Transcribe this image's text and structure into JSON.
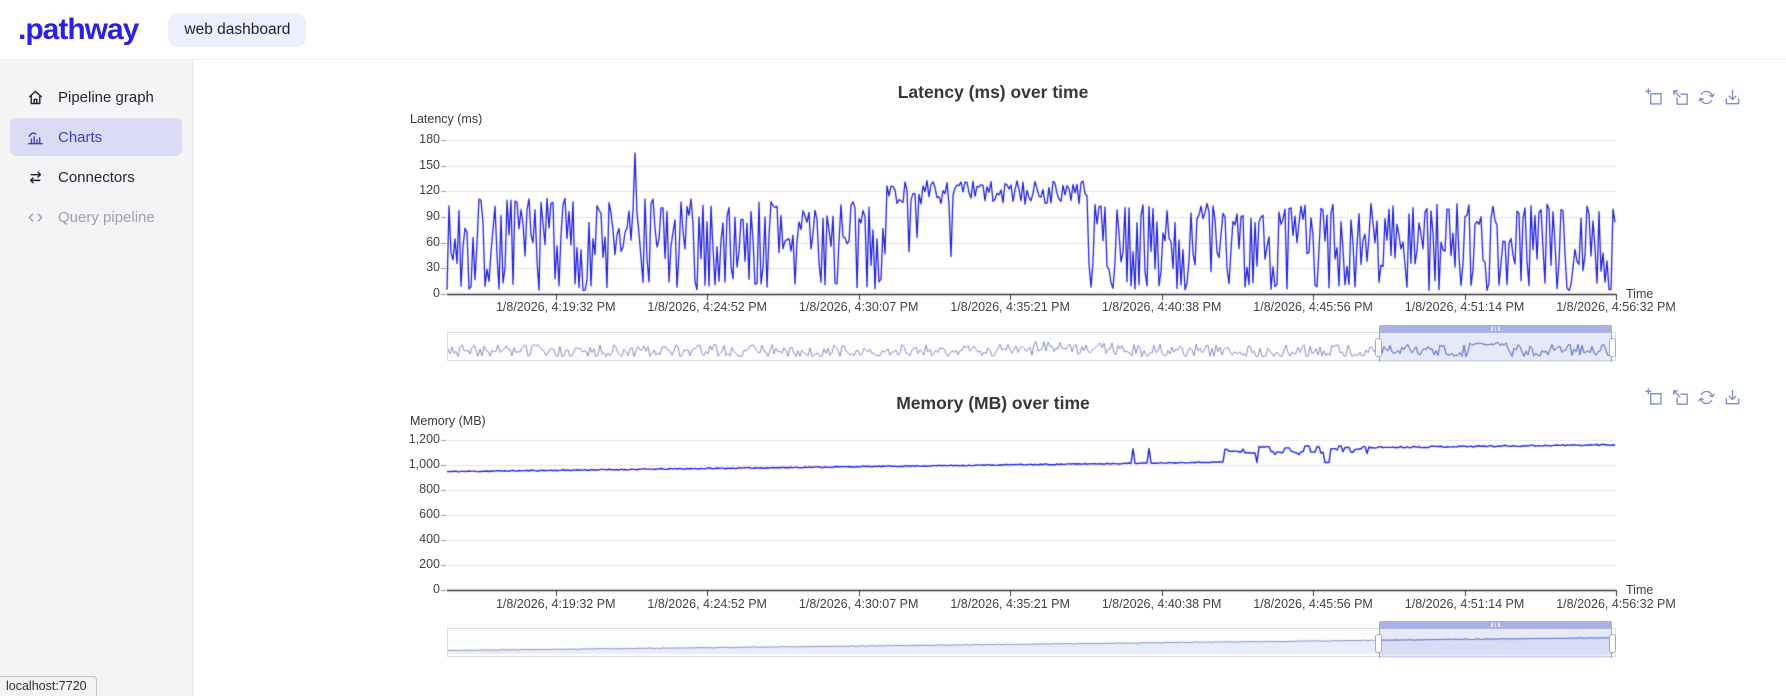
{
  "header": {
    "logo_text": ".pathway",
    "badge": "web dashboard"
  },
  "sidebar": {
    "items": [
      {
        "label": "Pipeline graph",
        "icon": "home-icon",
        "state": "default"
      },
      {
        "label": "Charts",
        "icon": "bar-chart-icon",
        "state": "active"
      },
      {
        "label": "Connectors",
        "icon": "arrows-swap-icon",
        "state": "default"
      },
      {
        "label": "Query pipeline",
        "icon": "code-brackets-icon",
        "state": "disabled"
      }
    ]
  },
  "status": {
    "text": "localhost:7720"
  },
  "toolbar_icons": [
    "box-zoom",
    "box-zoom-out",
    "refresh",
    "download"
  ],
  "colors": {
    "accent_line": "#2222dd",
    "logo_blue": "#2a21e6",
    "sidebar_active_bg": "#dbdcf4",
    "sidebar_active_text": "#3b3fc6",
    "selection_border": "#98a3d9",
    "selection_header": "#a9b2e3",
    "toolbar_icon": "#7e8dc3"
  },
  "chart_data": [
    {
      "type": "line",
      "title": "Latency (ms) over time",
      "ylabel": "Latency (ms)",
      "xlabel": "Time",
      "ylim": [
        0,
        180
      ],
      "yticks": [
        0,
        30,
        60,
        90,
        120,
        150,
        180
      ],
      "ytick_labels": [
        "0",
        "30",
        "60",
        "90",
        "120",
        "150",
        "180"
      ],
      "x_ticks": [
        "1/8/2026, 4:19:32 PM",
        "1/8/2026, 4:24:52 PM",
        "1/8/2026, 4:30:07 PM",
        "1/8/2026, 4:35:21 PM",
        "1/8/2026, 4:40:38 PM",
        "1/8/2026, 4:45:56 PM",
        "1/8/2026, 4:51:14 PM",
        "1/8/2026, 4:56:32 PM"
      ],
      "x_tick_step_frac": 0.12957,
      "grid": "horizontal",
      "legend": "none",
      "line_color": "#2222dd",
      "line_width": 1.3,
      "series_profile": {
        "seed": 7,
        "step": 2,
        "segments": [
          {
            "from": 0.0,
            "to": 0.375,
            "kind": "noise",
            "low": [
              4,
              18
            ],
            "mid": [
              28,
              78
            ],
            "high": [
              82,
              112
            ],
            "p_low": 0.2,
            "p_mid": 0.42
          },
          {
            "from": 0.375,
            "to": 0.548,
            "kind": "plateau",
            "base": 104,
            "amp": 29,
            "dip_p": 0.05,
            "dip": [
              42,
              80
            ]
          },
          {
            "from": 0.548,
            "to": 1.0,
            "kind": "noise",
            "low": [
              4,
              16
            ],
            "mid": [
              26,
              72
            ],
            "high": [
              80,
              106
            ],
            "p_low": 0.2,
            "p_mid": 0.4
          }
        ],
        "spikes": [
          {
            "x_frac": 0.16,
            "value": 165
          }
        ]
      },
      "range_selector": {
        "start_frac": 0.798,
        "end_frac": 0.9975,
        "line_color": "#8791c5",
        "selected_line_color": "#5c6abf",
        "fill": null,
        "profile": {
          "seed": 3,
          "step": 2,
          "ylim": [
            0,
            1.25
          ],
          "segments": [
            {
              "from": 0.0,
              "to": 0.49,
              "kind": "noise",
              "low": [
                0.07,
                0.18
              ],
              "mid": [
                0.22,
                0.5
              ],
              "high": [
                0.5,
                0.78
              ],
              "p_low": 0.25,
              "p_mid": 0.45
            },
            {
              "from": 0.49,
              "to": 0.57,
              "kind": "noise",
              "low": [
                0.15,
                0.3
              ],
              "mid": [
                0.35,
                0.65
              ],
              "high": [
                0.65,
                0.97
              ],
              "p_low": 0.18,
              "p_mid": 0.42
            },
            {
              "from": 0.57,
              "to": 0.873,
              "kind": "noise",
              "low": [
                0.07,
                0.18
              ],
              "mid": [
                0.22,
                0.5
              ],
              "high": [
                0.5,
                0.78
              ],
              "p_low": 0.25,
              "p_mid": 0.45
            },
            {
              "from": 0.873,
              "to": 0.908,
              "kind": "plateau",
              "base": 0.68,
              "amp": 0.22,
              "dip_p": 0.06,
              "dip": [
                0.3,
                0.5
              ]
            },
            {
              "from": 0.908,
              "to": 1.0,
              "kind": "noise",
              "low": [
                0.08,
                0.2
              ],
              "mid": [
                0.25,
                0.52
              ],
              "high": [
                0.52,
                0.8
              ],
              "p_low": 0.22,
              "p_mid": 0.45
            }
          ]
        }
      }
    },
    {
      "type": "line",
      "title": "Memory (MB) over time",
      "ylabel": "Memory (MB)",
      "xlabel": "Time",
      "ylim": [
        0,
        1200
      ],
      "yticks": [
        0,
        200,
        400,
        600,
        800,
        1000,
        1200
      ],
      "ytick_labels": [
        "0",
        "200",
        "400",
        "600",
        "800",
        "1,000",
        "1,200"
      ],
      "x_ticks": [
        "1/8/2026, 4:19:32 PM",
        "1/8/2026, 4:24:52 PM",
        "1/8/2026, 4:30:07 PM",
        "1/8/2026, 4:35:21 PM",
        "1/8/2026, 4:40:38 PM",
        "1/8/2026, 4:45:56 PM",
        "1/8/2026, 4:51:14 PM",
        "1/8/2026, 4:56:32 PM"
      ],
      "x_tick_step_frac": 0.12957,
      "grid": "horizontal",
      "legend": "none",
      "line_color": "#2222dd",
      "line_width": 1.4,
      "series_profile": {
        "seed": 11,
        "step": 2,
        "segments": [
          {
            "from": 0.0,
            "to": 0.575,
            "kind": "trend",
            "v0": 947,
            "v1": 1012,
            "jitter": 8
          },
          {
            "from": 0.575,
            "to": 0.665,
            "kind": "trend",
            "v0": 1012,
            "v1": 1024,
            "jitter": 6
          },
          {
            "from": 0.665,
            "to": 0.787,
            "kind": "steps",
            "base": 1082,
            "amp": 72,
            "hold": 3
          },
          {
            "from": 0.787,
            "to": 1.0,
            "kind": "trend",
            "v0": 1140,
            "v1": 1162,
            "jitter": 12
          }
        ],
        "spikes": [
          {
            "x_frac": 0.586,
            "value": 1130
          },
          {
            "x_frac": 0.601,
            "value": 1132
          }
        ]
      },
      "range_selector": {
        "start_frac": 0.798,
        "end_frac": 0.9975,
        "line_color": "#8791c5",
        "selected_line_color": "#5c6abf",
        "fill": "#e9edf9",
        "profile": {
          "seed": 5,
          "step": 2,
          "ylim": [
            0,
            1.0
          ],
          "segments": [
            {
              "from": 0.0,
              "to": 1.0,
              "kind": "trend",
              "v0": 0.16,
              "v1": 0.74,
              "jitter": 0.03
            }
          ]
        }
      }
    }
  ]
}
